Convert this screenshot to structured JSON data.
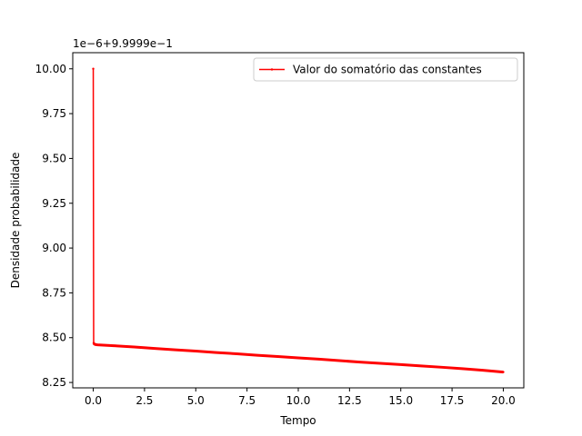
{
  "chart_data": {
    "type": "line",
    "title": "",
    "xlabel": "Tempo",
    "ylabel": "Densidade probabilidade",
    "y_offset_label": "1e−6+9.9999e−1",
    "xlim": [
      -1.0,
      21.0
    ],
    "ylim": [
      8.22,
      10.09
    ],
    "x_ticks": [
      0,
      2.5,
      5,
      7.5,
      10,
      12.5,
      15,
      17.5,
      20
    ],
    "x_tick_labels": [
      "0.0",
      "2.5",
      "5.0",
      "7.5",
      "10.0",
      "12.5",
      "15.0",
      "17.5",
      "20.0"
    ],
    "y_ticks": [
      8.25,
      8.5,
      8.75,
      9.0,
      9.25,
      9.5,
      9.75,
      10.0
    ],
    "y_tick_labels": [
      "8.25",
      "8.50",
      "8.75",
      "9.00",
      "9.25",
      "9.50",
      "9.75",
      "10.00"
    ],
    "grid": false,
    "legend_position": "top-right",
    "series": [
      {
        "name": "Valor do somatório das constantes",
        "color": "#ff0000",
        "marker": "point",
        "x": [
          0.0,
          0.02,
          0.05,
          0.1,
          0.2,
          0.5,
          1,
          2,
          3,
          4,
          5,
          6,
          7,
          8,
          9,
          10,
          11,
          12,
          13,
          14,
          15,
          16,
          17,
          18,
          19,
          20
        ],
        "y": [
          10.0,
          8.47,
          8.465,
          8.462,
          8.46,
          8.458,
          8.455,
          8.448,
          8.44,
          8.432,
          8.425,
          8.417,
          8.41,
          8.402,
          8.395,
          8.387,
          8.38,
          8.372,
          8.364,
          8.357,
          8.35,
          8.342,
          8.335,
          8.327,
          8.318,
          8.308
        ]
      }
    ]
  }
}
